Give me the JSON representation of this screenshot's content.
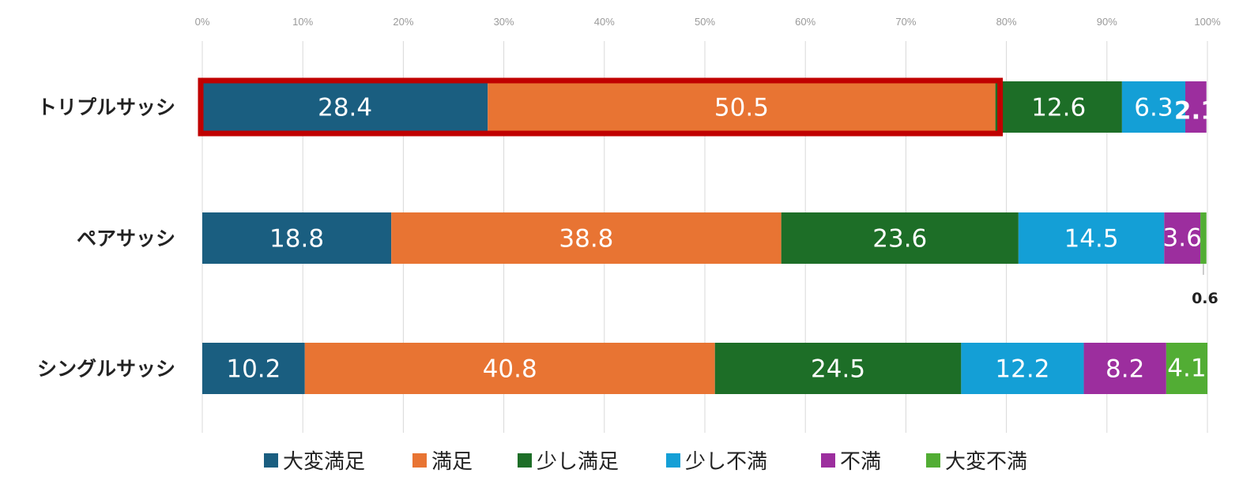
{
  "chart_data": {
    "type": "bar",
    "orientation": "horizontal",
    "stacked": true,
    "percent": true,
    "xlim": [
      0,
      100
    ],
    "x_ticks": [
      "0%",
      "10%",
      "20%",
      "30%",
      "40%",
      "50%",
      "60%",
      "70%",
      "80%",
      "90%",
      "100%"
    ],
    "grid": true,
    "legend_position": "bottom",
    "categories": [
      "トリプルサッシ",
      "ペアサッシ",
      "シングルサッシ"
    ],
    "series": [
      {
        "name": "大変満足",
        "color": "#1a5e80",
        "values": [
          28.4,
          18.8,
          10.2
        ]
      },
      {
        "name": "満足",
        "color": "#e87433",
        "values": [
          50.5,
          38.8,
          40.8
        ]
      },
      {
        "name": "少し満足",
        "color": "#1d6e27",
        "values": [
          12.6,
          23.6,
          24.5
        ]
      },
      {
        "name": "少し不満",
        "color": "#149fd6",
        "values": [
          6.3,
          14.5,
          12.2
        ]
      },
      {
        "name": "不満",
        "color": "#9c2e9e",
        "values": [
          2.1,
          3.6,
          8.2
        ]
      },
      {
        "name": "大変不満",
        "color": "#52ad34",
        "values": [
          0,
          0.6,
          4.1
        ]
      }
    ],
    "data_labels": [
      [
        "28.4",
        "50.5",
        "12.6",
        "6.3",
        "2.1",
        ""
      ],
      [
        "18.8",
        "38.8",
        "23.6",
        "14.5",
        "3.6",
        "0.6"
      ],
      [
        "10.2",
        "40.8",
        "24.5",
        "12.2",
        "8.2",
        "4.1"
      ]
    ],
    "highlight": {
      "category_index": 0,
      "series_indices": [
        0,
        1
      ],
      "color": "#c00000"
    }
  }
}
